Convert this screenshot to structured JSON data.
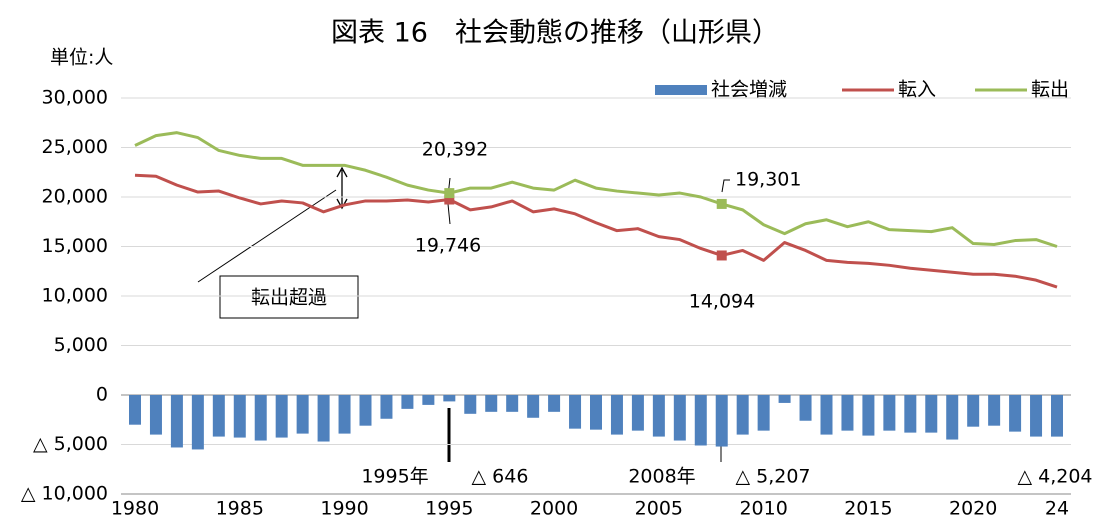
{
  "chart_data": {
    "type": "bar-line",
    "title": "図表 16　社会動態の推移（山形県）",
    "y_axis_label": "単位:人",
    "x": [
      1980,
      1981,
      1982,
      1983,
      1984,
      1985,
      1986,
      1987,
      1988,
      1989,
      1990,
      1991,
      1992,
      1993,
      1994,
      1995,
      1996,
      1997,
      1998,
      1999,
      2000,
      2001,
      2002,
      2003,
      2004,
      2005,
      2006,
      2007,
      2008,
      2009,
      2010,
      2011,
      2012,
      2013,
      2014,
      2015,
      2016,
      2017,
      2018,
      2019,
      2020,
      2021,
      2022,
      2023,
      2024
    ],
    "series": [
      {
        "name": "社会増減",
        "type": "bar",
        "color": "#4f81bd",
        "values": [
          -3000,
          -4000,
          -5300,
          -5500,
          -4200,
          -4300,
          -4600,
          -4300,
          -3900,
          -4700,
          -3900,
          -3100,
          -2400,
          -1400,
          -1000,
          -646,
          -1900,
          -1700,
          -1700,
          -2300,
          -1700,
          -3400,
          -3500,
          -4000,
          -3600,
          -4200,
          -4600,
          -5100,
          -5207,
          -4000,
          -3600,
          -800,
          -2600,
          -4000,
          -3600,
          -4100,
          -3600,
          -3800,
          -3800,
          -4500,
          -3200,
          -3100,
          -3700,
          -4200,
          -4204
        ],
        "value_labels": [
          null,
          null,
          null,
          null,
          null,
          null,
          null,
          null,
          null,
          null,
          null,
          null,
          null,
          null,
          null,
          "△ 646",
          null,
          null,
          null,
          null,
          null,
          null,
          null,
          null,
          null,
          null,
          null,
          null,
          "△ 5,207",
          null,
          null,
          null,
          null,
          null,
          null,
          null,
          null,
          null,
          null,
          null,
          null,
          null,
          null,
          null,
          "△ 4,204"
        ]
      },
      {
        "name": "転入",
        "type": "line",
        "color": "#c0504d",
        "values": [
          22200,
          22100,
          21200,
          20500,
          20600,
          19900,
          19300,
          19600,
          19400,
          18500,
          19200,
          19600,
          19600,
          19700,
          19500,
          19746,
          18700,
          19000,
          19600,
          18500,
          18800,
          18300,
          17400,
          16600,
          16800,
          16000,
          15700,
          14800,
          14094,
          14600,
          13600,
          15400,
          14600,
          13600,
          13400,
          13300,
          13100,
          12800,
          12600,
          12400,
          12200,
          12200,
          12000,
          11600,
          10900
        ],
        "value_labels": [
          null,
          null,
          null,
          null,
          null,
          null,
          null,
          null,
          null,
          null,
          null,
          null,
          null,
          null,
          null,
          "19,746",
          null,
          null,
          null,
          null,
          null,
          null,
          null,
          null,
          null,
          null,
          null,
          null,
          "14,094",
          null,
          null,
          null,
          null,
          null,
          null,
          null,
          null,
          null,
          null,
          null,
          null,
          null,
          null,
          null,
          null
        ]
      },
      {
        "name": "転出",
        "type": "line",
        "color": "#9bbb59",
        "values": [
          25200,
          26200,
          26500,
          26000,
          24700,
          24200,
          23900,
          23900,
          23200,
          23200,
          23200,
          22700,
          22000,
          21200,
          20700,
          20392,
          20900,
          20900,
          21500,
          20900,
          20700,
          21700,
          20900,
          20600,
          20400,
          20200,
          20400,
          20000,
          19301,
          18700,
          17200,
          16300,
          17300,
          17700,
          17000,
          17500,
          16700,
          16600,
          16500,
          16900,
          15300,
          15200,
          15600,
          15700,
          15000
        ],
        "value_labels": [
          null,
          null,
          null,
          null,
          null,
          null,
          null,
          null,
          null,
          null,
          null,
          null,
          null,
          null,
          null,
          "20,392",
          null,
          null,
          null,
          null,
          null,
          null,
          null,
          null,
          null,
          null,
          null,
          null,
          "19,301",
          null,
          null,
          null,
          null,
          null,
          null,
          null,
          null,
          null,
          null,
          null,
          null,
          null,
          null,
          null,
          null
        ]
      }
    ],
    "annotations": [
      "1995年",
      "2008年",
      "転出超過"
    ],
    "xlim": [
      1980,
      2024
    ],
    "xticks": [
      1980,
      1985,
      1990,
      1995,
      2000,
      2005,
      2010,
      2015,
      2020,
      {
        "value": 2024,
        "label": "24"
      }
    ],
    "ylim": [
      -10000,
      30000
    ],
    "yticks": [
      {
        "value": 30000,
        "label": "30,000"
      },
      {
        "value": 25000,
        "label": "25,000"
      },
      {
        "value": 20000,
        "label": "20,000"
      },
      {
        "value": 15000,
        "label": "15,000"
      },
      {
        "value": 10000,
        "label": "10,000"
      },
      {
        "value": 5000,
        "label": "5,000"
      },
      0,
      {
        "value": -5000,
        "label": "△ 5,000"
      },
      {
        "value": -10000,
        "label": "△ 10,000"
      }
    ],
    "grid": true,
    "legend": "top-right"
  }
}
